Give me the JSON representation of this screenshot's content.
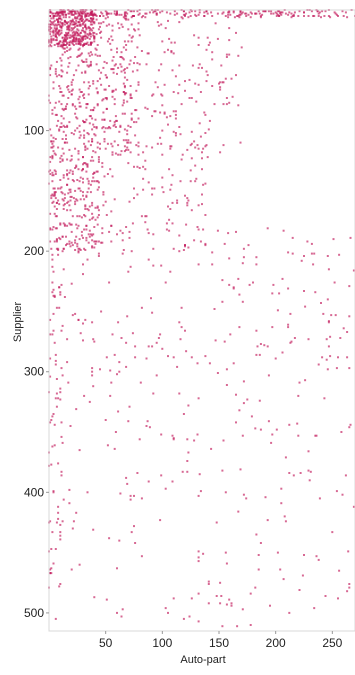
{
  "chart_data": {
    "type": "scatter",
    "subtype": "sparse-matrix-pattern",
    "title": "",
    "xlabel": "Auto-part",
    "ylabel": "Supplier",
    "xlim": [
      0,
      270
    ],
    "ylim": [
      0,
      515
    ],
    "y_axis_inverted": true,
    "xticks": [
      50,
      100,
      150,
      200,
      250
    ],
    "yticks": [
      100,
      200,
      300,
      400,
      500
    ],
    "grid": false,
    "legend": "none",
    "marker_color": "#c2185b",
    "frame_color": "#d8d8d8",
    "density_description": "nonzeros most dense at low supplier index and low auto-part index, thinning toward the bottom-right",
    "generation_seed": 20231,
    "generated_regions": [
      {
        "x": [
          0,
          270
        ],
        "y": [
          0,
          6
        ],
        "count": 220
      },
      {
        "x": [
          0,
          40
        ],
        "y": [
          0,
          30
        ],
        "count": 380
      },
      {
        "x": [
          0,
          80
        ],
        "y": [
          0,
          120
        ],
        "count": 360
      },
      {
        "x": [
          0,
          170
        ],
        "y": [
          0,
          120
        ],
        "count": 260
      },
      {
        "x": [
          0,
          45
        ],
        "y": [
          120,
          200
        ],
        "count": 200
      },
      {
        "x": [
          0,
          140
        ],
        "y": [
          110,
          200
        ],
        "count": 180
      },
      {
        "x": [
          0,
          270
        ],
        "y": [
          180,
          300
        ],
        "count": 190
      },
      {
        "x": [
          0,
          270
        ],
        "y": [
          300,
          420
        ],
        "count": 120
      },
      {
        "x": [
          0,
          270
        ],
        "y": [
          420,
          512
        ],
        "count": 80
      },
      {
        "x": [
          0,
          12
        ],
        "y": [
          200,
          480
        ],
        "count": 60
      }
    ],
    "points": [
      {
        "x": 38,
        "y": 297
      },
      {
        "x": 38,
        "y": 300
      },
      {
        "x": 38,
        "y": 303
      },
      {
        "x": 10,
        "y": 433
      },
      {
        "x": 10,
        "y": 436
      },
      {
        "x": 10,
        "y": 439
      },
      {
        "x": 96,
        "y": 64
      },
      {
        "x": 92,
        "y": 212
      },
      {
        "x": 31,
        "y": 320
      },
      {
        "x": 122,
        "y": 374
      },
      {
        "x": 141,
        "y": 492
      },
      {
        "x": 212,
        "y": 500
      },
      {
        "x": 82,
        "y": 405
      },
      {
        "x": 171,
        "y": 242
      },
      {
        "x": 225,
        "y": 452
      }
    ]
  }
}
